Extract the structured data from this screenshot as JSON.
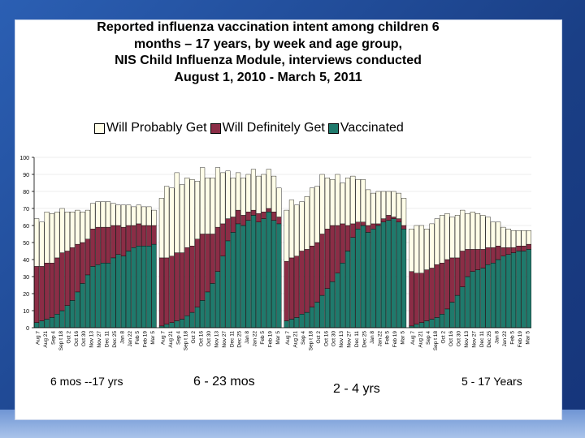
{
  "chart_data": {
    "type": "bar",
    "subtype": "stacked",
    "title_lines": [
      "Reported influenza vaccination intent among children 6",
      "months – 17 years, by week and age group,",
      "NIS Child Influenza Module, interviews conducted",
      "August 1, 2010 - March 5, 2011"
    ],
    "legend": [
      {
        "name": "Will Probably Get",
        "color": "#fffde8"
      },
      {
        "name": "Will Definitely Get",
        "color": "#8b2d46"
      },
      {
        "name": "Vaccinated",
        "color": "#1f7a6c"
      }
    ],
    "ylim": [
      0,
      100
    ],
    "yticks": [
      0,
      10,
      20,
      30,
      40,
      50,
      60,
      70,
      80,
      90,
      100
    ],
    "week_labels": [
      "Aug 7",
      "Aug 21",
      "Sep 4",
      "Sep t 18",
      "Oct 2",
      "Oct 16",
      "Oct 30",
      "Nov 13",
      "Nov 27",
      "Dec 11",
      "Dec 25",
      "Jan 8",
      "Jan 22",
      "Feb 5",
      "Feb 19",
      "Mar 5"
    ],
    "groups": [
      {
        "name": "6 mos --17 yrs",
        "vaccinated": [
          3,
          4,
          5,
          6,
          8,
          10,
          13,
          16,
          21,
          26,
          31,
          36,
          37,
          38,
          38,
          41,
          43,
          42,
          45,
          47,
          48,
          48,
          48,
          49
        ],
        "definitely": [
          33,
          32,
          33,
          32,
          33,
          34,
          32,
          31,
          28,
          24,
          21,
          22,
          22,
          21,
          21,
          19,
          17,
          17,
          15,
          13,
          13,
          12,
          12,
          11
        ],
        "probably": [
          28,
          26,
          30,
          29,
          27,
          26,
          23,
          21,
          20,
          18,
          17,
          15,
          15,
          15,
          15,
          13,
          12,
          13,
          12,
          11,
          11,
          11,
          11,
          9
        ]
      },
      {
        "name": "6 - 23 mos",
        "vaccinated": [
          1,
          2,
          3,
          4,
          5,
          7,
          9,
          12,
          16,
          21,
          26,
          33,
          42,
          51,
          56,
          61,
          60,
          63,
          66,
          62,
          64,
          68,
          63,
          61
        ],
        "definitely": [
          40,
          39,
          39,
          40,
          39,
          40,
          39,
          40,
          39,
          34,
          29,
          26,
          19,
          13,
          9,
          8,
          6,
          5,
          3,
          5,
          4,
          2,
          5,
          4
        ],
        "probably": [
          35,
          42,
          40,
          47,
          40,
          41,
          39,
          34,
          39,
          33,
          33,
          35,
          30,
          28,
          23,
          22,
          22,
          22,
          24,
          22,
          22,
          23,
          21,
          17
        ]
      },
      {
        "name": "2 - 4 yrs",
        "vaccinated": [
          4,
          5,
          6,
          8,
          9,
          12,
          15,
          19,
          23,
          27,
          32,
          38,
          45,
          53,
          58,
          60,
          56,
          58,
          60,
          62,
          63,
          64,
          62,
          58
        ],
        "definitely": [
          35,
          36,
          36,
          37,
          37,
          36,
          35,
          36,
          35,
          33,
          28,
          23,
          15,
          8,
          4,
          2,
          4,
          3,
          1,
          2,
          3,
          1,
          2,
          2
        ],
        "probably": [
          30,
          34,
          30,
          29,
          31,
          34,
          33,
          35,
          30,
          27,
          30,
          24,
          28,
          28,
          25,
          25,
          21,
          18,
          19,
          16,
          14,
          15,
          15,
          16
        ]
      },
      {
        "name": "5 - 17 Years",
        "vaccinated": [
          1,
          2,
          3,
          4,
          5,
          6,
          8,
          11,
          15,
          19,
          24,
          30,
          33,
          34,
          35,
          37,
          38,
          40,
          42,
          43,
          44,
          45,
          45,
          46
        ],
        "definitely": [
          32,
          30,
          29,
          30,
          30,
          31,
          30,
          29,
          26,
          22,
          21,
          16,
          13,
          12,
          11,
          10,
          9,
          8,
          5,
          4,
          3,
          3,
          3,
          3
        ],
        "probably": [
          25,
          28,
          28,
          24,
          26,
          27,
          28,
          27,
          24,
          25,
          24,
          21,
          22,
          21,
          20,
          18,
          15,
          14,
          12,
          11,
          10,
          9,
          9,
          8
        ]
      }
    ]
  }
}
